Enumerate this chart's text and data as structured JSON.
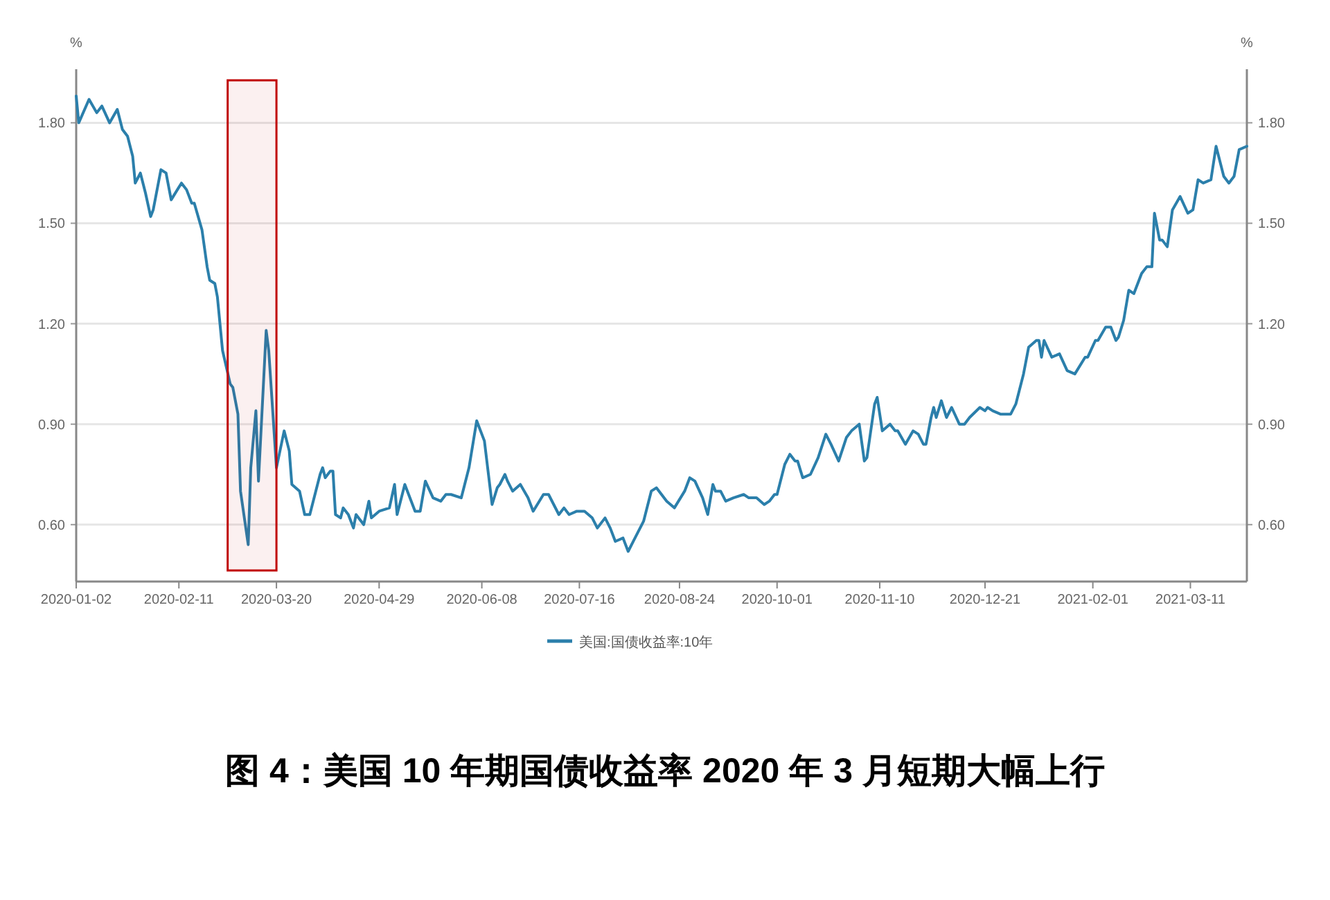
{
  "chart_data": {
    "type": "line",
    "title": "图 4：美国 10 年期国债收益率 2020 年 3 月短期大幅上行",
    "ylabel": "%",
    "y2label": "%",
    "x": [
      "2020-01-02",
      "2020-01-03",
      "2020-01-07",
      "2020-01-10",
      "2020-01-12",
      "2020-01-15",
      "2020-01-18",
      "2020-01-20",
      "2020-01-22",
      "2020-01-24",
      "2020-01-25",
      "2020-01-27",
      "2020-01-29",
      "2020-01-31",
      "2020-02-01",
      "2020-02-04",
      "2020-02-06",
      "2020-02-08",
      "2020-02-12",
      "2020-02-14",
      "2020-02-16",
      "2020-02-17",
      "2020-02-20",
      "2020-02-22",
      "2020-02-23",
      "2020-02-25",
      "2020-02-26",
      "2020-02-28",
      "2020-03-02",
      "2020-03-03",
      "2020-03-05",
      "2020-03-06",
      "2020-03-09",
      "2020-03-10",
      "2020-03-12",
      "2020-03-13",
      "2020-03-16",
      "2020-03-17",
      "2020-03-20",
      "2020-03-23",
      "2020-03-25",
      "2020-03-26",
      "2020-03-29",
      "2020-03-31",
      "2020-04-02",
      "2020-04-06",
      "2020-04-07",
      "2020-04-08",
      "2020-04-10",
      "2020-04-11",
      "2020-04-12",
      "2020-04-14",
      "2020-04-15",
      "2020-04-17",
      "2020-04-19",
      "2020-04-20",
      "2020-04-23",
      "2020-04-25",
      "2020-04-26",
      "2020-04-29",
      "2020-05-03",
      "2020-05-05",
      "2020-05-06",
      "2020-05-09",
      "2020-05-13",
      "2020-05-15",
      "2020-05-17",
      "2020-05-20",
      "2020-05-23",
      "2020-05-25",
      "2020-05-27",
      "2020-05-31",
      "2020-06-03",
      "2020-06-06",
      "2020-06-09",
      "2020-06-12",
      "2020-06-14",
      "2020-06-15",
      "2020-06-17",
      "2020-06-18",
      "2020-06-20",
      "2020-06-23",
      "2020-06-26",
      "2020-06-28",
      "2020-07-02",
      "2020-07-04",
      "2020-07-06",
      "2020-07-08",
      "2020-07-10",
      "2020-07-12",
      "2020-07-15",
      "2020-07-18",
      "2020-07-21",
      "2020-07-23",
      "2020-07-26",
      "2020-07-28",
      "2020-07-30",
      "2020-08-02",
      "2020-08-04",
      "2020-08-06",
      "2020-08-08",
      "2020-08-10",
      "2020-08-13",
      "2020-08-15",
      "2020-08-17",
      "2020-08-19",
      "2020-08-22",
      "2020-08-26",
      "2020-08-28",
      "2020-08-30",
      "2020-09-02",
      "2020-09-04",
      "2020-09-06",
      "2020-09-07",
      "2020-09-09",
      "2020-09-11",
      "2020-09-14",
      "2020-09-18",
      "2020-09-20",
      "2020-09-23",
      "2020-09-26",
      "2020-09-28",
      "2020-09-30",
      "2020-10-01",
      "2020-10-04",
      "2020-10-06",
      "2020-10-08",
      "2020-10-09",
      "2020-10-11",
      "2020-10-14",
      "2020-10-17",
      "2020-10-20",
      "2020-10-22",
      "2020-10-25",
      "2020-10-28",
      "2020-10-30",
      "2020-11-02",
      "2020-11-04",
      "2020-11-05",
      "2020-11-08",
      "2020-11-09",
      "2020-11-11",
      "2020-11-14",
      "2020-11-16",
      "2020-11-17",
      "2020-11-20",
      "2020-11-23",
      "2020-11-25",
      "2020-11-27",
      "2020-11-28",
      "2020-11-30",
      "2020-12-01",
      "2020-12-02",
      "2020-12-04",
      "2020-12-06",
      "2020-12-08",
      "2020-12-11",
      "2020-12-13",
      "2020-12-15",
      "2020-12-19",
      "2020-12-21",
      "2020-12-22",
      "2020-12-24",
      "2020-12-27",
      "2020-12-31",
      "2021-01-02",
      "2021-01-05",
      "2021-01-07",
      "2021-01-10",
      "2021-01-11",
      "2021-01-12",
      "2021-01-13",
      "2021-01-16",
      "2021-01-19",
      "2021-01-22",
      "2021-01-25",
      "2021-01-29",
      "2021-01-30",
      "2021-02-02",
      "2021-02-03",
      "2021-02-06",
      "2021-02-08",
      "2021-02-10",
      "2021-02-11",
      "2021-02-13",
      "2021-02-15",
      "2021-02-17",
      "2021-02-20",
      "2021-02-22",
      "2021-02-24",
      "2021-02-25",
      "2021-02-27",
      "2021-02-28",
      "2021-03-02",
      "2021-03-04",
      "2021-03-07",
      "2021-03-10",
      "2021-03-12",
      "2021-03-14",
      "2021-03-16",
      "2021-03-19",
      "2021-03-21",
      "2021-03-24",
      "2021-03-26",
      "2021-03-28",
      "2021-03-30",
      "2021-04-02"
    ],
    "series": [
      {
        "name": "美国:国债收益率:10年",
        "color": "#2b7fab",
        "values": [
          1.88,
          1.8,
          1.87,
          1.83,
          1.85,
          1.8,
          1.84,
          1.78,
          1.76,
          1.7,
          1.62,
          1.65,
          1.59,
          1.52,
          1.54,
          1.66,
          1.65,
          1.57,
          1.62,
          1.6,
          1.56,
          1.56,
          1.48,
          1.37,
          1.33,
          1.32,
          1.28,
          1.12,
          1.02,
          1.01,
          0.93,
          0.7,
          0.54,
          0.77,
          0.94,
          0.73,
          1.18,
          1.12,
          0.77,
          0.88,
          0.82,
          0.72,
          0.7,
          0.63,
          0.63,
          0.75,
          0.77,
          0.74,
          0.76,
          0.76,
          0.63,
          0.62,
          0.65,
          0.63,
          0.59,
          0.63,
          0.6,
          0.67,
          0.62,
          0.64,
          0.65,
          0.72,
          0.63,
          0.72,
          0.64,
          0.64,
          0.73,
          0.68,
          0.67,
          0.69,
          0.69,
          0.68,
          0.77,
          0.91,
          0.85,
          0.66,
          0.71,
          0.72,
          0.75,
          0.73,
          0.7,
          0.72,
          0.68,
          0.64,
          0.69,
          0.69,
          0.66,
          0.63,
          0.65,
          0.63,
          0.64,
          0.64,
          0.62,
          0.59,
          0.62,
          0.59,
          0.55,
          0.56,
          0.52,
          0.55,
          0.58,
          0.61,
          0.7,
          0.71,
          0.69,
          0.67,
          0.65,
          0.7,
          0.74,
          0.73,
          0.68,
          0.63,
          0.72,
          0.7,
          0.7,
          0.67,
          0.68,
          0.69,
          0.68,
          0.68,
          0.66,
          0.67,
          0.69,
          0.69,
          0.78,
          0.81,
          0.79,
          0.79,
          0.74,
          0.75,
          0.8,
          0.87,
          0.84,
          0.79,
          0.86,
          0.88,
          0.9,
          0.79,
          0.8,
          0.96,
          0.98,
          0.88,
          0.9,
          0.88,
          0.88,
          0.84,
          0.88,
          0.87,
          0.84,
          0.84,
          0.92,
          0.95,
          0.92,
          0.97,
          0.92,
          0.95,
          0.9,
          0.9,
          0.92,
          0.95,
          0.94,
          0.95,
          0.94,
          0.93,
          0.93,
          0.96,
          1.05,
          1.13,
          1.15,
          1.15,
          1.1,
          1.15,
          1.1,
          1.11,
          1.06,
          1.05,
          1.1,
          1.1,
          1.15,
          1.15,
          1.19,
          1.19,
          1.15,
          1.16,
          1.21,
          1.3,
          1.29,
          1.35,
          1.37,
          1.37,
          1.53,
          1.45,
          1.45,
          1.43,
          1.54,
          1.58,
          1.53,
          1.54,
          1.63,
          1.62,
          1.63,
          1.73,
          1.64,
          1.62,
          1.64,
          1.72,
          1.73
        ]
      }
    ],
    "xlim": [
      "2020-01-02",
      "2021-04-02"
    ],
    "xticks": [
      "2020-01-02",
      "2020-02-11",
      "2020-03-20",
      "2020-04-29",
      "2020-06-08",
      "2020-07-16",
      "2020-08-24",
      "2020-10-01",
      "2020-11-10",
      "2020-12-21",
      "2021-02-01",
      "2021-03-11"
    ],
    "ylim": [
      0.43,
      1.96
    ],
    "yticks": [
      {
        "value": 0.6,
        "label": "0.60"
      },
      {
        "value": 0.9,
        "label": "0.90"
      },
      {
        "value": 1.2,
        "label": "1.20"
      },
      {
        "value": 1.5,
        "label": "1.50"
      },
      {
        "value": 1.8,
        "label": "1.80"
      }
    ],
    "y2lim": [
      0.43,
      1.96
    ],
    "y2ticks": [
      {
        "value": 0.6,
        "label": "0.60"
      },
      {
        "value": 0.9,
        "label": "0.90"
      },
      {
        "value": 1.2,
        "label": "1.20"
      },
      {
        "value": 1.5,
        "label": "1.50"
      },
      {
        "value": 1.8,
        "label": "1.80"
      }
    ],
    "bands": [
      {
        "axis": "x",
        "from": "2020-03-01",
        "to": "2020-03-20",
        "color": "#c00000"
      }
    ],
    "grid": "y",
    "legend": "bottom",
    "marker": "none",
    "line_style": "solid"
  }
}
